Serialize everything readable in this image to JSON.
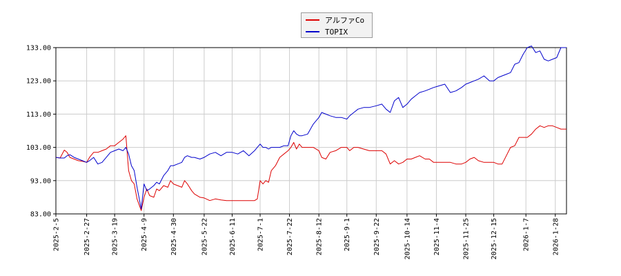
{
  "chart_data": {
    "type": "line",
    "ylim": [
      83,
      133
    ],
    "yticks": [
      "83.00",
      "93.00",
      "103.00",
      "113.00",
      "123.00",
      "133.00"
    ],
    "ytick_values": [
      83,
      93,
      103,
      113,
      123,
      133
    ],
    "xlim": [
      "2025-02-05",
      "2026-02-05"
    ],
    "xticks": [
      "2025-2-5",
      "2025-2-27",
      "2025-3-19",
      "2025-4-9",
      "2025-4-30",
      "2025-5-22",
      "2025-6-11",
      "2025-7-1",
      "2025-7-22",
      "2025-8-12",
      "2025-9-1",
      "2025-9-22",
      "2025-10-14",
      "2025-11-4",
      "2025-11-25",
      "2025-12-15",
      "2026-1-7",
      "2026-1-28"
    ],
    "xtick_dates": [
      "2025-02-05",
      "2025-02-27",
      "2025-03-19",
      "2025-04-09",
      "2025-04-30",
      "2025-05-22",
      "2025-06-11",
      "2025-07-01",
      "2025-07-22",
      "2025-08-12",
      "2025-09-01",
      "2025-09-22",
      "2025-10-14",
      "2025-11-04",
      "2025-11-25",
      "2025-12-15",
      "2026-01-07",
      "2026-01-28"
    ],
    "grid": true,
    "legend_position": "top-center",
    "series": [
      {
        "name": "アルファCo",
        "color": "#dd0000",
        "points": [
          [
            "2025-02-05",
            100.0
          ],
          [
            "2025-02-08",
            99.8
          ],
          [
            "2025-02-11",
            102.2
          ],
          [
            "2025-02-13",
            101.5
          ],
          [
            "2025-02-15",
            100.0
          ],
          [
            "2025-02-18",
            99.5
          ],
          [
            "2025-02-21",
            99.0
          ],
          [
            "2025-02-24",
            98.8
          ],
          [
            "2025-02-27",
            98.5
          ],
          [
            "2025-03-01",
            100.0
          ],
          [
            "2025-03-04",
            101.5
          ],
          [
            "2025-03-07",
            101.5
          ],
          [
            "2025-03-10",
            102.0
          ],
          [
            "2025-03-13",
            102.5
          ],
          [
            "2025-03-16",
            103.5
          ],
          [
            "2025-03-19",
            103.5
          ],
          [
            "2025-03-22",
            104.5
          ],
          [
            "2025-03-25",
            105.5
          ],
          [
            "2025-03-27",
            106.5
          ],
          [
            "2025-03-29",
            96.0
          ],
          [
            "2025-03-31",
            93.0
          ],
          [
            "2025-04-02",
            92.0
          ],
          [
            "2025-04-04",
            87.5
          ],
          [
            "2025-04-07",
            84.0
          ],
          [
            "2025-04-09",
            88.0
          ],
          [
            "2025-04-11",
            90.5
          ],
          [
            "2025-04-13",
            88.5
          ],
          [
            "2025-04-16",
            88.0
          ],
          [
            "2025-04-18",
            90.5
          ],
          [
            "2025-04-20",
            90.0
          ],
          [
            "2025-04-23",
            91.5
          ],
          [
            "2025-04-26",
            91.0
          ],
          [
            "2025-04-28",
            93.0
          ],
          [
            "2025-04-30",
            92.0
          ],
          [
            "2025-05-03",
            91.5
          ],
          [
            "2025-05-06",
            91.0
          ],
          [
            "2025-05-08",
            93.0
          ],
          [
            "2025-05-10",
            92.0
          ],
          [
            "2025-05-13",
            90.0
          ],
          [
            "2025-05-15",
            89.0
          ],
          [
            "2025-05-19",
            88.0
          ],
          [
            "2025-05-22",
            87.8
          ],
          [
            "2025-05-26",
            87.0
          ],
          [
            "2025-05-30",
            87.5
          ],
          [
            "2025-06-03",
            87.2
          ],
          [
            "2025-06-07",
            87.0
          ],
          [
            "2025-06-11",
            87.0
          ],
          [
            "2025-06-15",
            87.0
          ],
          [
            "2025-06-19",
            87.0
          ],
          [
            "2025-06-23",
            87.0
          ],
          [
            "2025-06-27",
            87.0
          ],
          [
            "2025-06-29",
            87.5
          ],
          [
            "2025-07-01",
            93.0
          ],
          [
            "2025-07-03",
            92.0
          ],
          [
            "2025-07-05",
            93.0
          ],
          [
            "2025-07-07",
            92.5
          ],
          [
            "2025-07-09",
            96.0
          ],
          [
            "2025-07-12",
            97.5
          ],
          [
            "2025-07-15",
            100.0
          ],
          [
            "2025-07-18",
            101.0
          ],
          [
            "2025-07-21",
            102.0
          ],
          [
            "2025-07-23",
            103.0
          ],
          [
            "2025-07-25",
            104.5
          ],
          [
            "2025-07-27",
            102.5
          ],
          [
            "2025-07-29",
            104.0
          ],
          [
            "2025-07-31",
            103.0
          ],
          [
            "2025-08-04",
            103.0
          ],
          [
            "2025-08-08",
            103.0
          ],
          [
            "2025-08-12",
            102.0
          ],
          [
            "2025-08-14",
            100.0
          ],
          [
            "2025-08-17",
            99.5
          ],
          [
            "2025-08-20",
            101.5
          ],
          [
            "2025-08-24",
            102.0
          ],
          [
            "2025-08-28",
            103.0
          ],
          [
            "2025-09-01",
            103.0
          ],
          [
            "2025-09-03",
            102.0
          ],
          [
            "2025-09-06",
            103.0
          ],
          [
            "2025-09-09",
            103.0
          ],
          [
            "2025-09-13",
            102.5
          ],
          [
            "2025-09-17",
            102.0
          ],
          [
            "2025-09-22",
            102.0
          ],
          [
            "2025-09-26",
            102.0
          ],
          [
            "2025-09-29",
            101.0
          ],
          [
            "2025-10-02",
            98.0
          ],
          [
            "2025-10-05",
            99.0
          ],
          [
            "2025-10-08",
            98.0
          ],
          [
            "2025-10-11",
            98.5
          ],
          [
            "2025-10-14",
            99.5
          ],
          [
            "2025-10-17",
            99.5
          ],
          [
            "2025-10-20",
            100.0
          ],
          [
            "2025-10-23",
            100.5
          ],
          [
            "2025-10-27",
            99.5
          ],
          [
            "2025-10-30",
            99.5
          ],
          [
            "2025-11-02",
            98.5
          ],
          [
            "2025-11-06",
            98.5
          ],
          [
            "2025-11-10",
            98.5
          ],
          [
            "2025-11-14",
            98.5
          ],
          [
            "2025-11-18",
            98.0
          ],
          [
            "2025-11-22",
            98.0
          ],
          [
            "2025-11-25",
            98.5
          ],
          [
            "2025-11-28",
            99.5
          ],
          [
            "2025-12-01",
            100.0
          ],
          [
            "2025-12-04",
            99.0
          ],
          [
            "2025-12-08",
            98.5
          ],
          [
            "2025-12-12",
            98.5
          ],
          [
            "2025-12-15",
            98.5
          ],
          [
            "2025-12-18",
            98.0
          ],
          [
            "2025-12-21",
            98.0
          ],
          [
            "2025-12-24",
            100.5
          ],
          [
            "2025-12-27",
            103.0
          ],
          [
            "2025-12-30",
            103.5
          ],
          [
            "2026-01-02",
            106.0
          ],
          [
            "2026-01-05",
            106.0
          ],
          [
            "2026-01-08",
            106.0
          ],
          [
            "2026-01-11",
            107.0
          ],
          [
            "2026-01-14",
            108.5
          ],
          [
            "2026-01-17",
            109.5
          ],
          [
            "2026-01-20",
            109.0
          ],
          [
            "2026-01-23",
            109.5
          ],
          [
            "2026-01-26",
            109.5
          ],
          [
            "2026-01-29",
            109.0
          ],
          [
            "2026-02-01",
            108.5
          ],
          [
            "2026-02-05",
            108.5
          ]
        ]
      },
      {
        "name": "TOPIX",
        "color": "#0000cc",
        "points": [
          [
            "2025-02-05",
            100.0
          ],
          [
            "2025-02-08",
            99.8
          ],
          [
            "2025-02-11",
            99.8
          ],
          [
            "2025-02-13",
            100.5
          ],
          [
            "2025-02-15",
            100.8
          ],
          [
            "2025-02-18",
            100.0
          ],
          [
            "2025-02-21",
            99.5
          ],
          [
            "2025-02-24",
            99.0
          ],
          [
            "2025-02-27",
            98.5
          ],
          [
            "2025-03-01",
            99.0
          ],
          [
            "2025-03-04",
            100.0
          ],
          [
            "2025-03-07",
            98.0
          ],
          [
            "2025-03-10",
            98.5
          ],
          [
            "2025-03-13",
            100.0
          ],
          [
            "2025-03-16",
            101.5
          ],
          [
            "2025-03-19",
            102.0
          ],
          [
            "2025-03-22",
            102.5
          ],
          [
            "2025-03-25",
            102.0
          ],
          [
            "2025-03-27",
            103.0
          ],
          [
            "2025-03-29",
            101.0
          ],
          [
            "2025-03-31",
            97.5
          ],
          [
            "2025-04-02",
            96.0
          ],
          [
            "2025-04-04",
            91.0
          ],
          [
            "2025-04-07",
            84.5
          ],
          [
            "2025-04-09",
            92.0
          ],
          [
            "2025-04-11",
            90.0
          ],
          [
            "2025-04-13",
            90.5
          ],
          [
            "2025-04-16",
            91.5
          ],
          [
            "2025-04-18",
            92.5
          ],
          [
            "2025-04-20",
            92.0
          ],
          [
            "2025-04-23",
            94.5
          ],
          [
            "2025-04-26",
            96.0
          ],
          [
            "2025-04-28",
            97.5
          ],
          [
            "2025-04-30",
            97.5
          ],
          [
            "2025-05-03",
            98.0
          ],
          [
            "2025-05-06",
            98.5
          ],
          [
            "2025-05-08",
            100.0
          ],
          [
            "2025-05-10",
            100.5
          ],
          [
            "2025-05-13",
            100.0
          ],
          [
            "2025-05-15",
            100.0
          ],
          [
            "2025-05-19",
            99.5
          ],
          [
            "2025-05-22",
            100.0
          ],
          [
            "2025-05-26",
            101.0
          ],
          [
            "2025-05-30",
            101.5
          ],
          [
            "2025-06-03",
            100.5
          ],
          [
            "2025-06-07",
            101.5
          ],
          [
            "2025-06-11",
            101.5
          ],
          [
            "2025-06-15",
            101.0
          ],
          [
            "2025-06-19",
            102.0
          ],
          [
            "2025-06-23",
            100.5
          ],
          [
            "2025-06-27",
            102.0
          ],
          [
            "2025-06-29",
            103.0
          ],
          [
            "2025-07-01",
            104.0
          ],
          [
            "2025-07-03",
            103.0
          ],
          [
            "2025-07-05",
            103.0
          ],
          [
            "2025-07-07",
            102.5
          ],
          [
            "2025-07-09",
            103.0
          ],
          [
            "2025-07-12",
            103.0
          ],
          [
            "2025-07-15",
            103.0
          ],
          [
            "2025-07-18",
            103.5
          ],
          [
            "2025-07-21",
            103.5
          ],
          [
            "2025-07-23",
            106.5
          ],
          [
            "2025-07-25",
            108.0
          ],
          [
            "2025-07-27",
            107.0
          ],
          [
            "2025-07-29",
            106.5
          ],
          [
            "2025-07-31",
            106.5
          ],
          [
            "2025-08-04",
            107.0
          ],
          [
            "2025-08-08",
            110.0
          ],
          [
            "2025-08-12",
            112.0
          ],
          [
            "2025-08-14",
            113.5
          ],
          [
            "2025-08-17",
            113.0
          ],
          [
            "2025-08-20",
            112.5
          ],
          [
            "2025-08-24",
            112.0
          ],
          [
            "2025-08-28",
            112.0
          ],
          [
            "2025-09-01",
            111.5
          ],
          [
            "2025-09-03",
            112.5
          ],
          [
            "2025-09-06",
            113.5
          ],
          [
            "2025-09-09",
            114.5
          ],
          [
            "2025-09-13",
            115.0
          ],
          [
            "2025-09-17",
            115.0
          ],
          [
            "2025-09-22",
            115.5
          ],
          [
            "2025-09-26",
            116.0
          ],
          [
            "2025-09-29",
            114.5
          ],
          [
            "2025-10-02",
            113.5
          ],
          [
            "2025-10-05",
            117.0
          ],
          [
            "2025-10-08",
            118.0
          ],
          [
            "2025-10-11",
            115.0
          ],
          [
            "2025-10-14",
            116.0
          ],
          [
            "2025-10-17",
            117.5
          ],
          [
            "2025-10-20",
            118.5
          ],
          [
            "2025-10-23",
            119.5
          ],
          [
            "2025-10-27",
            120.0
          ],
          [
            "2025-10-30",
            120.5
          ],
          [
            "2025-11-02",
            121.0
          ],
          [
            "2025-11-06",
            121.5
          ],
          [
            "2025-11-10",
            122.0
          ],
          [
            "2025-11-14",
            119.5
          ],
          [
            "2025-11-18",
            120.0
          ],
          [
            "2025-11-22",
            121.0
          ],
          [
            "2025-11-25",
            122.0
          ],
          [
            "2025-11-28",
            122.5
          ],
          [
            "2025-12-01",
            123.0
          ],
          [
            "2025-12-04",
            123.5
          ],
          [
            "2025-12-08",
            124.5
          ],
          [
            "2025-12-12",
            123.0
          ],
          [
            "2025-12-15",
            123.0
          ],
          [
            "2025-12-18",
            124.0
          ],
          [
            "2025-12-21",
            124.5
          ],
          [
            "2025-12-24",
            125.0
          ],
          [
            "2025-12-27",
            125.5
          ],
          [
            "2025-12-30",
            128.0
          ],
          [
            "2026-01-02",
            128.5
          ],
          [
            "2026-01-05",
            131.0
          ],
          [
            "2026-01-08",
            133.0
          ],
          [
            "2026-01-11",
            133.5
          ],
          [
            "2026-01-14",
            131.5
          ],
          [
            "2026-01-17",
            132.0
          ],
          [
            "2026-01-20",
            129.5
          ],
          [
            "2026-01-23",
            129.0
          ],
          [
            "2026-01-26",
            129.5
          ],
          [
            "2026-01-29",
            130.0
          ],
          [
            "2026-02-01",
            133.0
          ],
          [
            "2026-02-05",
            133.0
          ]
        ]
      }
    ]
  }
}
